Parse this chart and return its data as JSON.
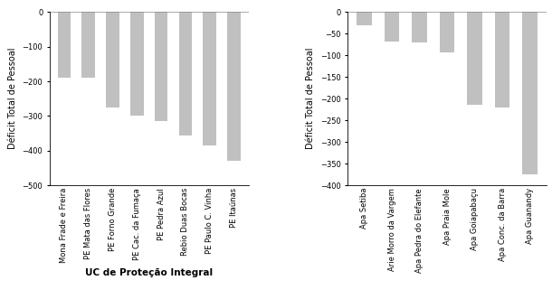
{
  "left_chart": {
    "categories": [
      "Mona Frade e Freira",
      "PE Mata das Flores",
      "PE Forno Grande",
      "PE Cac. da Fumaça",
      "PE Pedra Azul",
      "Rebio Duas Bocas",
      "PE Paulo C. Vinha",
      "PE Itaúnas"
    ],
    "values": [
      -190,
      -190,
      -275,
      -300,
      -315,
      -355,
      -385,
      -430
    ],
    "xlabel": "UC de Proteção Integral",
    "ylabel": "Déficit Total de Pessoal",
    "ylim": [
      -500,
      0
    ],
    "yticks": [
      0,
      -100,
      -200,
      -300,
      -400,
      -500
    ],
    "bar_color": "#c0c0c0"
  },
  "right_chart": {
    "categories": [
      "Apa Setiba",
      "Arie Morro da Vargem",
      "Apa Pedra do Elefante",
      "Apa Praia Mole",
      "Apa Goiapabaçu",
      "Apa Conc. da Barra",
      "Apa Guanandy"
    ],
    "values": [
      -30,
      -68,
      -70,
      -93,
      -215,
      -220,
      -375
    ],
    "xlabel": "",
    "ylabel": "Déficit Total de Pessoal",
    "ylim": [
      -400,
      0
    ],
    "yticks": [
      0,
      -50,
      -100,
      -150,
      -200,
      -250,
      -300,
      -350,
      -400
    ],
    "bar_color": "#c0c0c0"
  },
  "background_color": "#ffffff",
  "tick_fontsize": 6,
  "label_fontsize": 7,
  "xlabel_fontsize": 7.5,
  "bar_width": 0.5
}
